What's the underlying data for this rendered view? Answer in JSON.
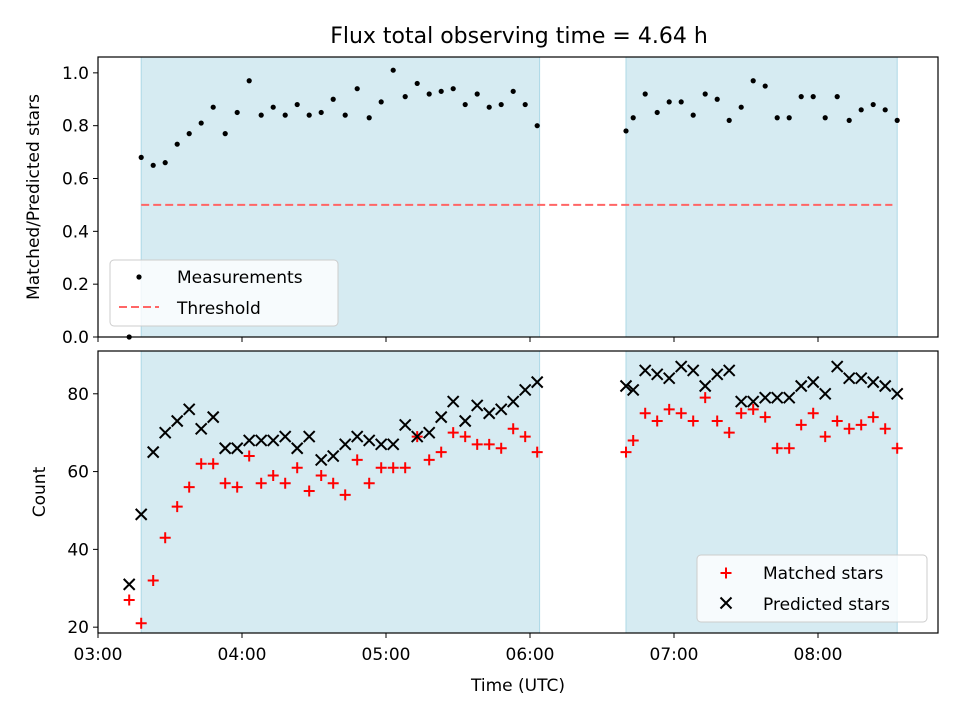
{
  "title": "Flux total observing time = 4.64 h",
  "colors": {
    "band": "#add8e6",
    "measurement": "#000000",
    "threshold": "#ff6666",
    "matched": "#ff0000",
    "predicted": "#000000"
  },
  "chart_data": [
    {
      "type": "scatter",
      "name": "ratio-panel",
      "title": "Flux total observing time = 4.64 h",
      "xlabel": "",
      "ylabel": "Matched/Predicted stars",
      "xlim": [
        "03:00",
        "08:50"
      ],
      "ylim": [
        0.0,
        1.06
      ],
      "yticks": [
        0.0,
        0.2,
        0.4,
        0.6,
        0.8,
        1.0
      ],
      "ytick_labels": [
        "0.0",
        "0.2",
        "0.4",
        "0.6",
        "0.8",
        "1.0"
      ],
      "grid": false,
      "legend": "lower-left",
      "shaded_intervals": [
        [
          "03:18",
          "06:04"
        ],
        [
          "06:40",
          "08:33"
        ]
      ],
      "threshold": {
        "name": "Threshold",
        "value": 0.5,
        "x_from": "03:18",
        "x_to": "08:31"
      },
      "series": [
        {
          "name": "Measurements",
          "x": [
            "03:13",
            "03:18",
            "03:23",
            "03:28",
            "03:33",
            "03:38",
            "03:43",
            "03:48",
            "03:53",
            "03:58",
            "04:03",
            "04:08",
            "04:13",
            "04:18",
            "04:23",
            "04:28",
            "04:33",
            "04:38",
            "04:43",
            "04:48",
            "04:53",
            "04:58",
            "05:03",
            "05:08",
            "05:13",
            "05:18",
            "05:23",
            "05:28",
            "05:33",
            "05:38",
            "05:43",
            "05:48",
            "05:53",
            "05:58",
            "06:03",
            "06:40",
            "06:43",
            "06:48",
            "06:53",
            "06:58",
            "07:03",
            "07:08",
            "07:13",
            "07:18",
            "07:23",
            "07:28",
            "07:33",
            "07:38",
            "07:43",
            "07:48",
            "07:53",
            "07:58",
            "08:03",
            "08:08",
            "08:13",
            "08:18",
            "08:23",
            "08:28",
            "08:33"
          ],
          "values": [
            0.0,
            0.68,
            0.65,
            0.66,
            0.73,
            0.77,
            0.81,
            0.87,
            0.77,
            0.85,
            0.97,
            0.84,
            0.87,
            0.84,
            0.88,
            0.84,
            0.85,
            0.9,
            0.84,
            0.94,
            0.83,
            0.89,
            1.01,
            0.91,
            0.96,
            0.92,
            0.93,
            0.94,
            0.88,
            0.92,
            0.87,
            0.88,
            0.93,
            0.88,
            0.8,
            0.78,
            0.83,
            0.92,
            0.85,
            0.89,
            0.89,
            0.84,
            0.92,
            0.9,
            0.82,
            0.87,
            0.97,
            0.95,
            0.83,
            0.83,
            0.91,
            0.91,
            0.83,
            0.91,
            0.82,
            0.86,
            0.88,
            0.86,
            0.82
          ]
        }
      ]
    },
    {
      "type": "scatter",
      "name": "count-panel",
      "xlabel": "Time (UTC)",
      "ylabel": "Count",
      "xlim": [
        "03:00",
        "08:50"
      ],
      "ylim": [
        18.5,
        91
      ],
      "xticks": [
        "03:00",
        "04:00",
        "05:00",
        "06:00",
        "07:00",
        "08:00"
      ],
      "yticks": [
        20,
        40,
        60,
        80
      ],
      "grid": false,
      "legend": "lower-right",
      "shaded_intervals": [
        [
          "03:18",
          "06:04"
        ],
        [
          "06:40",
          "08:33"
        ]
      ],
      "series": [
        {
          "name": "Matched stars",
          "marker": "plus",
          "x": [
            "03:13",
            "03:18",
            "03:23",
            "03:28",
            "03:33",
            "03:38",
            "03:43",
            "03:48",
            "03:53",
            "03:58",
            "04:03",
            "04:08",
            "04:13",
            "04:18",
            "04:23",
            "04:28",
            "04:33",
            "04:38",
            "04:43",
            "04:48",
            "04:53",
            "04:58",
            "05:03",
            "05:08",
            "05:13",
            "05:18",
            "05:23",
            "05:28",
            "05:33",
            "05:38",
            "05:43",
            "05:48",
            "05:53",
            "05:58",
            "06:03",
            "06:40",
            "06:43",
            "06:48",
            "06:53",
            "06:58",
            "07:03",
            "07:08",
            "07:13",
            "07:18",
            "07:23",
            "07:28",
            "07:33",
            "07:38",
            "07:43",
            "07:48",
            "07:53",
            "07:58",
            "08:03",
            "08:08",
            "08:13",
            "08:18",
            "08:23",
            "08:28",
            "08:33"
          ],
          "values": [
            27,
            21,
            32,
            43,
            51,
            56,
            62,
            62,
            57,
            56,
            64,
            57,
            59,
            57,
            61,
            55,
            59,
            57,
            54,
            63,
            57,
            61,
            61,
            61,
            69,
            63,
            65,
            70,
            69,
            67,
            67,
            66,
            71,
            69,
            65,
            65,
            68,
            75,
            73,
            76,
            75,
            73,
            79,
            73,
            70,
            75,
            76,
            74,
            66,
            66,
            72,
            75,
            69,
            73,
            71,
            72,
            74,
            71,
            66
          ]
        },
        {
          "name": "Predicted stars",
          "marker": "x",
          "x": [
            "03:13",
            "03:18",
            "03:23",
            "03:28",
            "03:33",
            "03:38",
            "03:43",
            "03:48",
            "03:53",
            "03:58",
            "04:03",
            "04:08",
            "04:13",
            "04:18",
            "04:23",
            "04:28",
            "04:33",
            "04:38",
            "04:43",
            "04:48",
            "04:53",
            "04:58",
            "05:03",
            "05:08",
            "05:13",
            "05:18",
            "05:23",
            "05:28",
            "05:33",
            "05:38",
            "05:43",
            "05:48",
            "05:53",
            "05:58",
            "06:03",
            "06:40",
            "06:43",
            "06:48",
            "06:53",
            "06:58",
            "07:03",
            "07:08",
            "07:13",
            "07:18",
            "07:23",
            "07:28",
            "07:33",
            "07:38",
            "07:43",
            "07:48",
            "07:53",
            "07:58",
            "08:03",
            "08:08",
            "08:13",
            "08:18",
            "08:23",
            "08:28",
            "08:33"
          ],
          "values": [
            31,
            49,
            65,
            70,
            73,
            76,
            71,
            74,
            66,
            66,
            68,
            68,
            68,
            69,
            66,
            69,
            63,
            64,
            67,
            69,
            68,
            67,
            67,
            72,
            69,
            70,
            74,
            78,
            73,
            77,
            75,
            76,
            78,
            81,
            83,
            82,
            81,
            86,
            85,
            84,
            87,
            86,
            82,
            85,
            86,
            78,
            78,
            79,
            79,
            79,
            82,
            83,
            80,
            87,
            84,
            84,
            83,
            82,
            80
          ]
        }
      ]
    }
  ]
}
